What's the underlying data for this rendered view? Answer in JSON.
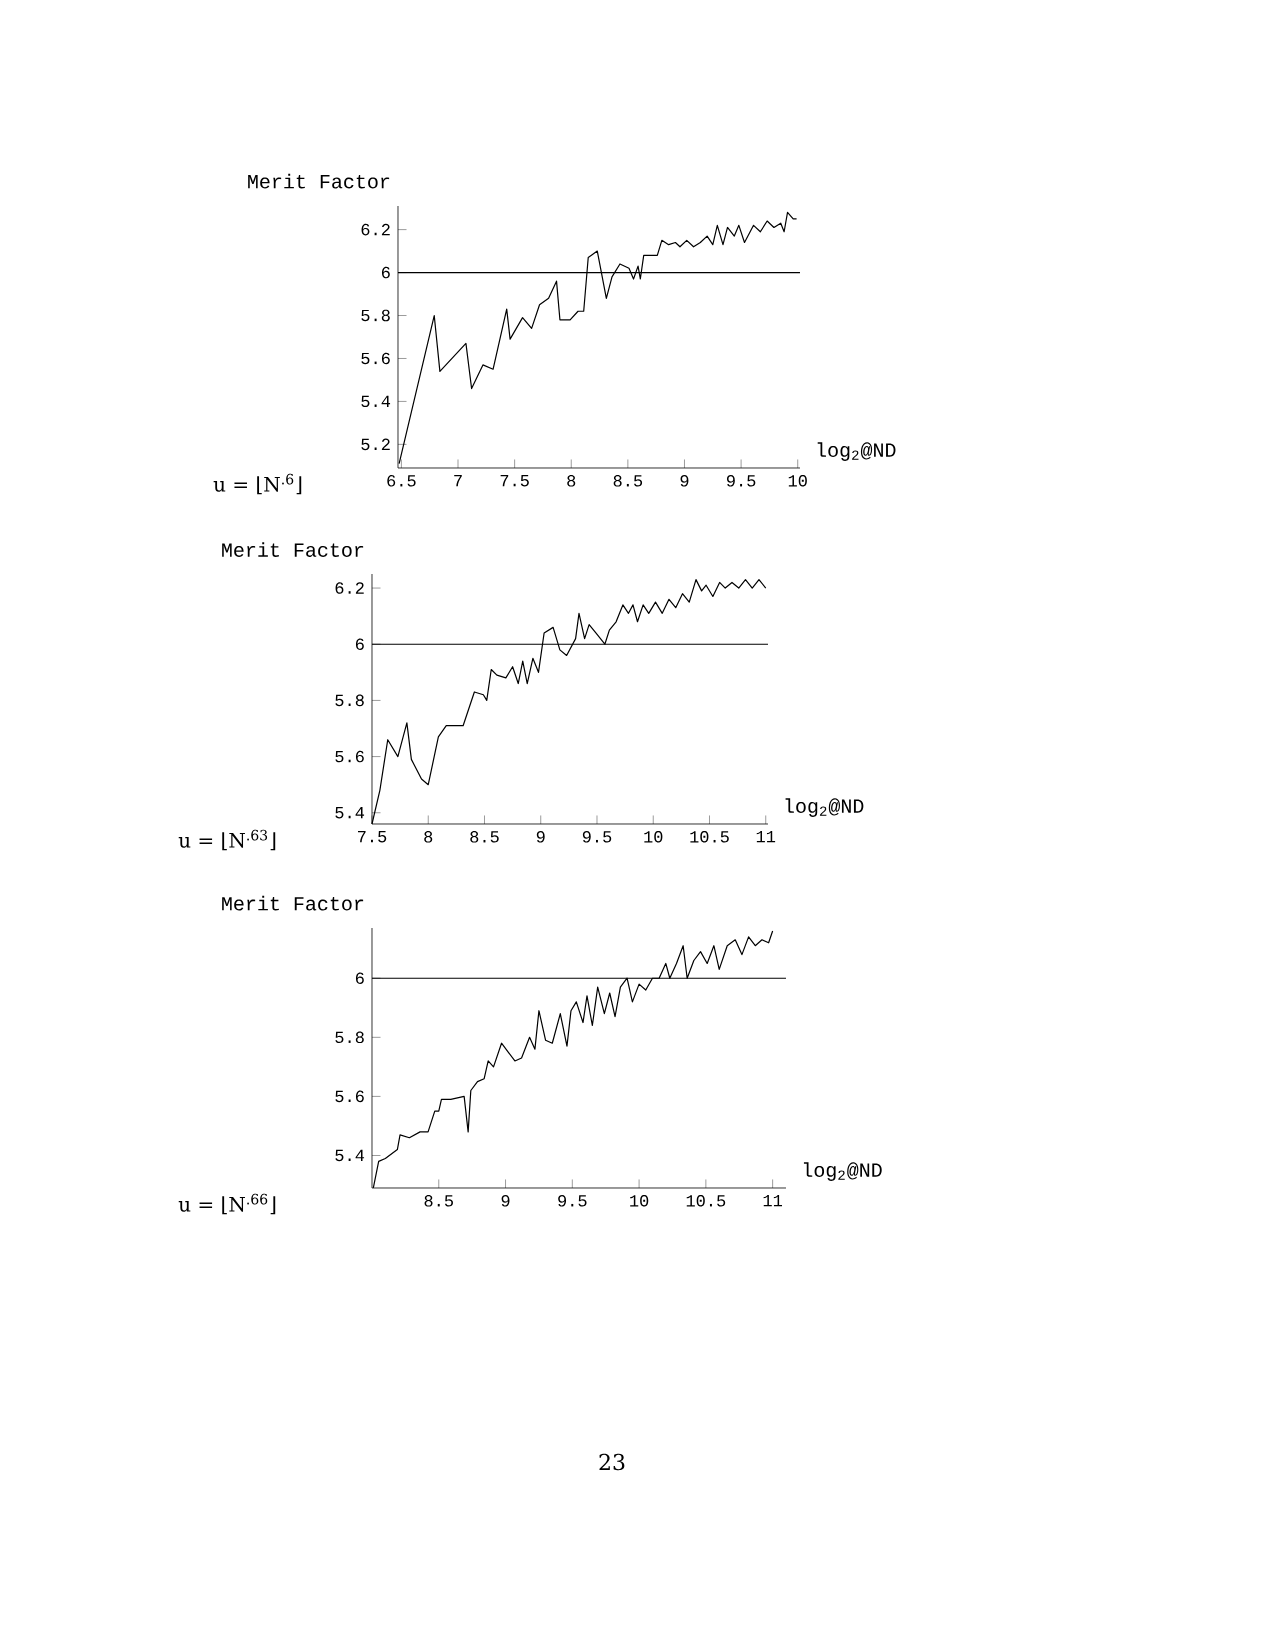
{
  "chart_data": [
    {
      "type": "line",
      "ylabel": "Merit Factor",
      "xlabel": "log$_{2}$@ND",
      "annotations": [
        "u = ⌊N$^{.6}$⌋"
      ],
      "x": [
        6.48,
        6.79,
        6.84,
        7.07,
        7.12,
        7.22,
        7.31,
        7.43,
        7.46,
        7.57,
        7.65,
        7.72,
        7.8,
        7.87,
        7.9,
        7.99,
        8.06,
        8.11,
        8.15,
        8.23,
        8.31,
        8.36,
        8.43,
        8.51,
        8.55,
        8.59,
        8.61,
        8.64,
        8.76,
        8.8,
        8.86,
        8.92,
        8.96,
        9.02,
        9.08,
        9.14,
        9.2,
        9.25,
        9.29,
        9.34,
        9.38,
        9.44,
        9.48,
        9.53,
        9.61,
        9.67,
        9.73,
        9.79,
        9.85,
        9.88,
        9.91,
        9.96,
        9.99
      ],
      "values": [
        5.11,
        5.8,
        5.54,
        5.67,
        5.46,
        5.57,
        5.55,
        5.83,
        5.69,
        5.79,
        5.74,
        5.85,
        5.88,
        5.96,
        5.78,
        5.78,
        5.82,
        5.82,
        6.07,
        6.1,
        5.88,
        5.98,
        6.04,
        6.02,
        5.97,
        6.03,
        5.97,
        6.08,
        6.08,
        6.15,
        6.13,
        6.14,
        6.12,
        6.15,
        6.12,
        6.14,
        6.17,
        6.13,
        6.22,
        6.13,
        6.21,
        6.17,
        6.22,
        6.14,
        6.22,
        6.19,
        6.24,
        6.21,
        6.23,
        6.19,
        6.28,
        6.25,
        6.25
      ],
      "color": "#000000",
      "ref_lines": [
        {
          "axis": "y",
          "value": 6,
          "color": "#000000"
        }
      ],
      "xlim": [
        6.47,
        10.02
      ],
      "ylim": [
        5.09,
        6.31
      ],
      "xticks": [
        6.5,
        7,
        7.5,
        8,
        8.5,
        9,
        9.5,
        10
      ],
      "yticks": [
        5.2,
        5.4,
        5.6,
        5.8,
        6,
        6.2
      ]
    },
    {
      "type": "line",
      "ylabel": "Merit Factor",
      "xlabel": "log$_{2}$@ND",
      "annotations": [
        "u = ⌊N$^{.63}$⌋"
      ],
      "x": [
        7.5,
        7.57,
        7.64,
        7.73,
        7.81,
        7.85,
        7.94,
        8.0,
        8.09,
        8.16,
        8.31,
        8.41,
        8.49,
        8.52,
        8.56,
        8.61,
        8.69,
        8.75,
        8.8,
        8.84,
        8.88,
        8.93,
        8.98,
        9.03,
        9.11,
        9.17,
        9.23,
        9.31,
        9.34,
        9.39,
        9.43,
        9.49,
        9.57,
        9.61,
        9.67,
        9.73,
        9.78,
        9.82,
        9.86,
        9.91,
        9.96,
        10.02,
        10.08,
        10.14,
        10.2,
        10.26,
        10.32,
        10.38,
        10.43,
        10.47,
        10.53,
        10.59,
        10.64,
        10.7,
        10.76,
        10.82,
        10.88,
        10.94,
        11.0
      ],
      "values": [
        5.36,
        5.48,
        5.66,
        5.6,
        5.72,
        5.59,
        5.52,
        5.5,
        5.67,
        5.71,
        5.71,
        5.83,
        5.82,
        5.8,
        5.91,
        5.89,
        5.88,
        5.92,
        5.86,
        5.94,
        5.86,
        5.95,
        5.9,
        6.04,
        6.06,
        5.98,
        5.96,
        6.02,
        6.11,
        6.02,
        6.07,
        6.04,
        6.0,
        6.05,
        6.08,
        6.14,
        6.11,
        6.14,
        6.08,
        6.14,
        6.11,
        6.15,
        6.11,
        6.16,
        6.13,
        6.18,
        6.15,
        6.23,
        6.19,
        6.21,
        6.17,
        6.22,
        6.2,
        6.22,
        6.2,
        6.23,
        6.2,
        6.23,
        6.2
      ],
      "color": "#000000",
      "ref_lines": [
        {
          "axis": "y",
          "value": 6,
          "color": "#000000"
        }
      ],
      "xlim": [
        7.5,
        11.02
      ],
      "ylim": [
        5.36,
        6.25
      ],
      "xticks": [
        7.5,
        8,
        8.5,
        9,
        9.5,
        10,
        10.5,
        11
      ],
      "yticks": [
        5.4,
        5.6,
        5.8,
        6,
        6.2
      ]
    },
    {
      "type": "line",
      "ylabel": "Merit Factor",
      "xlabel": "log$_{2}$@ND",
      "annotations": [
        "u = ⌊N$^{.66}$⌋",
        "23"
      ],
      "x": [
        8.01,
        8.05,
        8.1,
        8.19,
        8.21,
        8.28,
        8.36,
        8.42,
        8.47,
        8.5,
        8.52,
        8.59,
        8.69,
        8.72,
        8.74,
        8.79,
        8.84,
        8.87,
        8.91,
        8.97,
        9.02,
        9.07,
        9.12,
        9.18,
        9.22,
        9.25,
        9.3,
        9.35,
        9.41,
        9.46,
        9.49,
        9.53,
        9.58,
        9.61,
        9.65,
        9.69,
        9.74,
        9.78,
        9.82,
        9.86,
        9.91,
        9.95,
        10.0,
        10.05,
        10.1,
        10.15,
        10.2,
        10.23,
        10.28,
        10.33,
        10.36,
        10.41,
        10.46,
        10.51,
        10.56,
        10.6,
        10.66,
        10.72,
        10.77,
        10.82,
        10.87,
        10.92,
        10.97,
        11.0
      ],
      "values": [
        5.29,
        5.38,
        5.39,
        5.42,
        5.47,
        5.46,
        5.48,
        5.48,
        5.55,
        5.55,
        5.59,
        5.59,
        5.6,
        5.48,
        5.62,
        5.65,
        5.66,
        5.72,
        5.7,
        5.78,
        5.75,
        5.72,
        5.73,
        5.8,
        5.76,
        5.89,
        5.79,
        5.78,
        5.88,
        5.77,
        5.89,
        5.92,
        5.85,
        5.94,
        5.84,
        5.97,
        5.88,
        5.95,
        5.87,
        5.97,
        6.0,
        5.92,
        5.98,
        5.96,
        6.0,
        6.0,
        6.05,
        6.0,
        6.05,
        6.11,
        6.0,
        6.06,
        6.09,
        6.05,
        6.11,
        6.03,
        6.11,
        6.13,
        6.08,
        6.14,
        6.11,
        6.13,
        6.12,
        6.16
      ],
      "color": "#000000",
      "ref_lines": [
        {
          "axis": "y",
          "value": 6,
          "color": "#000000"
        }
      ],
      "xlim": [
        8.0,
        11.1
      ],
      "ylim": [
        5.29,
        6.17
      ],
      "xticks": [
        8.5,
        9,
        9.5,
        10,
        10.5,
        11
      ],
      "yticks": [
        5.4,
        5.6,
        5.8,
        6
      ]
    }
  ]
}
